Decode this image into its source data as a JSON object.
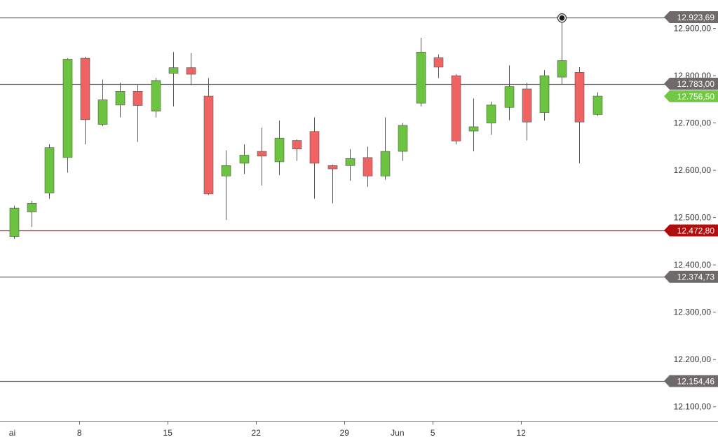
{
  "colors": {
    "up": "#6cc340",
    "down": "#ef6363",
    "wick": "#555555",
    "level_line": "#666666",
    "level_tag": "#6e6a69",
    "support_line": "#a41c1c",
    "support_tag": "#b20d0d",
    "current_tag": "#71c844"
  },
  "chart_data": {
    "type": "candlestick",
    "title": "",
    "ylim": [
      12070,
      12960
    ],
    "y_ticks": [
      {
        "value": 12100,
        "label": "12.100,00"
      },
      {
        "value": 12200,
        "label": "12.200,00"
      },
      {
        "value": 12300,
        "label": "12.300,00"
      },
      {
        "value": 12400,
        "label": "12.400,00"
      },
      {
        "value": 12500,
        "label": "12.500,00"
      },
      {
        "value": 12600,
        "label": "12.600,00"
      },
      {
        "value": 12700,
        "label": "12.700,00"
      },
      {
        "value": 12800,
        "label": "12.800,00"
      },
      {
        "value": 12900,
        "label": "12.900,00"
      }
    ],
    "x_labels": [
      {
        "index": -0.1,
        "label": "ai"
      },
      {
        "index": 3.7,
        "label": "8"
      },
      {
        "index": 8.7,
        "label": "15"
      },
      {
        "index": 13.7,
        "label": "22"
      },
      {
        "index": 18.7,
        "label": "29"
      },
      {
        "index": 21.7,
        "label": "Jun"
      },
      {
        "index": 23.7,
        "label": "5"
      },
      {
        "index": 28.7,
        "label": "12"
      }
    ],
    "x_ticks": [
      3.7,
      8.7,
      13.7,
      18.7,
      23.7,
      28.7
    ],
    "candles": [
      {
        "o": 12460,
        "h": 12525,
        "l": 12455,
        "c": 12520
      },
      {
        "o": 12512,
        "h": 12535,
        "l": 12480,
        "c": 12530
      },
      {
        "o": 12552,
        "h": 12655,
        "l": 12540,
        "c": 12648
      },
      {
        "o": 12627,
        "h": 12837,
        "l": 12595,
        "c": 12835
      },
      {
        "o": 12837,
        "h": 12840,
        "l": 12655,
        "c": 12707
      },
      {
        "o": 12697,
        "h": 12792,
        "l": 12693,
        "c": 12749
      },
      {
        "o": 12738,
        "h": 12785,
        "l": 12712,
        "c": 12767
      },
      {
        "o": 12767,
        "h": 12780,
        "l": 12660,
        "c": 12737
      },
      {
        "o": 12725,
        "h": 12795,
        "l": 12712,
        "c": 12790
      },
      {
        "o": 12805,
        "h": 12850,
        "l": 12735,
        "c": 12817
      },
      {
        "o": 12817,
        "h": 12848,
        "l": 12780,
        "c": 12803
      },
      {
        "o": 12757,
        "h": 12795,
        "l": 12548,
        "c": 12550
      },
      {
        "o": 12588,
        "h": 12642,
        "l": 12495,
        "c": 12610
      },
      {
        "o": 12615,
        "h": 12655,
        "l": 12592,
        "c": 12632
      },
      {
        "o": 12640,
        "h": 12690,
        "l": 12568,
        "c": 12630
      },
      {
        "o": 12618,
        "h": 12705,
        "l": 12590,
        "c": 12668
      },
      {
        "o": 12663,
        "h": 12665,
        "l": 12620,
        "c": 12645
      },
      {
        "o": 12682,
        "h": 12712,
        "l": 12540,
        "c": 12615
      },
      {
        "o": 12610,
        "h": 12612,
        "l": 12530,
        "c": 12603
      },
      {
        "o": 12610,
        "h": 12645,
        "l": 12578,
        "c": 12625
      },
      {
        "o": 12627,
        "h": 12650,
        "l": 12565,
        "c": 12588
      },
      {
        "o": 12588,
        "h": 12712,
        "l": 12580,
        "c": 12640
      },
      {
        "o": 12640,
        "h": 12700,
        "l": 12620,
        "c": 12695
      },
      {
        "o": 12742,
        "h": 12880,
        "l": 12735,
        "c": 12850
      },
      {
        "o": 12838,
        "h": 12845,
        "l": 12795,
        "c": 12818
      },
      {
        "o": 12800,
        "h": 12803,
        "l": 12655,
        "c": 12662
      },
      {
        "o": 12683,
        "h": 12752,
        "l": 12640,
        "c": 12692
      },
      {
        "o": 12700,
        "h": 12745,
        "l": 12675,
        "c": 12738
      },
      {
        "o": 12733,
        "h": 12822,
        "l": 12706,
        "c": 12777
      },
      {
        "o": 12772,
        "h": 12785,
        "l": 12663,
        "c": 12702
      },
      {
        "o": 12722,
        "h": 12812,
        "l": 12705,
        "c": 12800
      },
      {
        "o": 12797,
        "h": 12922,
        "l": 12782,
        "c": 12832
      },
      {
        "o": 12807,
        "h": 12818,
        "l": 12615,
        "c": 12702
      },
      {
        "o": 12718,
        "h": 12765,
        "l": 12715,
        "c": 12757
      }
    ],
    "levels": [
      {
        "value": 12923.69,
        "label": "12.923,69",
        "kind": "resistance"
      },
      {
        "value": 12783.0,
        "label": "12.783,00",
        "kind": "resistance"
      },
      {
        "value": 12472.8,
        "label": "12.472,80",
        "kind": "support"
      },
      {
        "value": 12374.73,
        "label": "12.374,73",
        "kind": "resistance"
      },
      {
        "value": 12154.46,
        "label": "12.154,46",
        "kind": "resistance"
      }
    ],
    "current_price": {
      "value": 12756.5,
      "label": "12.756,50"
    },
    "marker": {
      "index": 31,
      "value": 12922
    }
  }
}
